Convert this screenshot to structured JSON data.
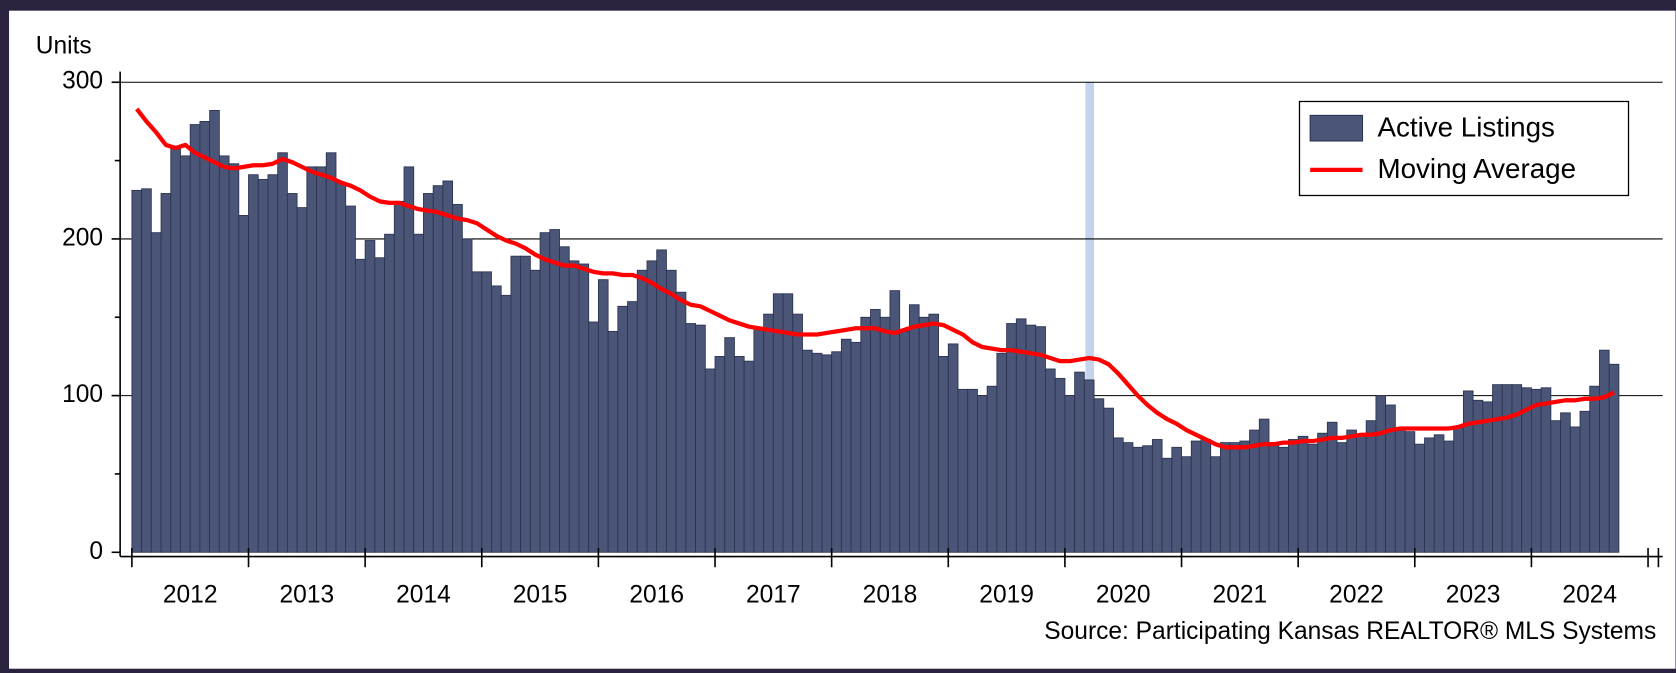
{
  "chart_data": {
    "type": "bar",
    "y_label": "Units",
    "source": "Source: Participating Kansas REALTOR® MLS Systems",
    "categories": [
      null,
      null,
      null,
      null,
      null,
      null,
      null,
      null,
      null,
      null,
      null,
      null,
      null,
      null,
      null,
      null,
      null,
      null,
      null,
      null,
      null,
      null,
      null,
      null,
      null,
      null,
      null,
      null,
      null,
      null,
      null,
      null,
      null,
      null,
      null,
      null,
      null,
      null,
      null,
      null,
      null,
      null,
      null,
      null,
      null,
      null,
      null,
      null,
      null,
      null,
      null,
      null,
      null,
      null,
      null,
      null,
      null,
      null,
      null,
      null,
      null,
      null,
      null,
      null,
      null,
      null,
      null,
      null,
      null,
      null,
      null,
      null,
      null,
      null,
      null,
      null,
      null,
      null,
      null,
      null,
      null,
      null,
      null,
      null,
      null,
      null,
      null,
      null,
      null,
      null,
      null,
      null,
      null,
      null,
      null,
      null,
      null,
      null,
      null,
      null,
      null,
      null,
      null,
      null,
      null,
      null,
      null,
      null,
      null,
      null,
      null,
      null,
      null,
      null,
      null,
      null,
      null,
      null,
      null,
      null,
      null,
      null,
      null,
      null,
      null,
      null,
      null,
      null,
      null,
      null,
      null,
      null,
      null,
      null,
      null,
      null,
      null,
      null,
      null,
      null,
      null,
      null,
      null,
      null,
      null,
      null,
      null,
      null,
      null,
      null,
      null,
      null,
      null
    ],
    "year_labels": [
      "2012",
      "2013",
      "2014",
      "2015",
      "2016",
      "2017",
      "2018",
      "2019",
      "2020",
      "2021",
      "2022",
      "2023",
      "2024"
    ],
    "highlight_index": 98,
    "series": [
      {
        "name": "Active Listings",
        "type": "bar",
        "color": "#4a5578",
        "values": [
          231,
          232,
          204,
          229,
          258,
          253,
          273,
          275,
          282,
          253,
          248,
          215,
          241,
          238,
          241,
          255,
          229,
          220,
          246,
          246,
          255,
          236,
          221,
          187,
          199,
          188,
          203,
          224,
          246,
          203,
          229,
          234,
          237,
          222,
          200,
          179,
          179,
          170,
          164,
          189,
          189,
          180,
          204,
          206,
          195,
          186,
          184,
          147,
          174,
          141,
          157,
          160,
          180,
          186,
          193,
          180,
          166,
          146,
          145,
          117,
          125,
          137,
          125,
          122,
          143,
          152,
          165,
          165,
          152,
          129,
          127,
          126,
          128,
          136,
          134,
          150,
          155,
          150,
          167,
          141,
          158,
          150,
          152,
          125,
          133,
          104,
          104,
          100,
          106,
          127,
          146,
          149,
          145,
          144,
          117,
          111,
          100,
          115,
          110,
          98,
          92,
          73,
          70,
          67,
          68,
          72,
          60,
          67,
          61,
          71,
          72,
          61,
          70,
          70,
          71,
          78,
          85,
          70,
          67,
          72,
          74,
          69,
          76,
          83,
          70,
          78,
          74,
          84,
          100,
          94,
          78,
          77,
          69,
          73,
          75,
          71,
          80,
          103,
          97,
          96,
          107,
          107,
          107,
          105,
          104,
          105,
          84,
          89,
          80,
          90,
          106,
          129,
          120
        ]
      },
      {
        "name": "Moving Average",
        "type": "line",
        "color": "#ff0000",
        "values": [
          283,
          275,
          268,
          260,
          258,
          260,
          255,
          252,
          249,
          246,
          245,
          246,
          247,
          247,
          248,
          251,
          249,
          246,
          243,
          241,
          239,
          236,
          234,
          231,
          227,
          224,
          223,
          223,
          221,
          219,
          218,
          217,
          215,
          213,
          212,
          210,
          206,
          202,
          199,
          197,
          194,
          190,
          187,
          185,
          183,
          183,
          181,
          179,
          178,
          178,
          177,
          177,
          175,
          172,
          168,
          165,
          161,
          158,
          157,
          154,
          151,
          148,
          146,
          144,
          143,
          142,
          141,
          140,
          139,
          139,
          139,
          140,
          141,
          142,
          143,
          143,
          143,
          141,
          140,
          142,
          144,
          145,
          146,
          145,
          142,
          139,
          134,
          131,
          130,
          129,
          129,
          128,
          127,
          126,
          124,
          122,
          122,
          123,
          124,
          123,
          120,
          114,
          107,
          100,
          94,
          89,
          85,
          82,
          78,
          75,
          72,
          69,
          67,
          67,
          67,
          68,
          69,
          69,
          70,
          70,
          71,
          71,
          72,
          73,
          73,
          74,
          75,
          75,
          76,
          78,
          79,
          79,
          79,
          79,
          79,
          79,
          80,
          82,
          83,
          84,
          85,
          86,
          88,
          91,
          94,
          95,
          96,
          97,
          97,
          98,
          98,
          99,
          102
        ]
      }
    ],
    "ylim": [
      0,
      300
    ],
    "yticks": [
      0,
      100,
      200,
      300
    ],
    "yminorticks": [
      50,
      150,
      250
    ],
    "grid": true,
    "legend": "upper right"
  }
}
